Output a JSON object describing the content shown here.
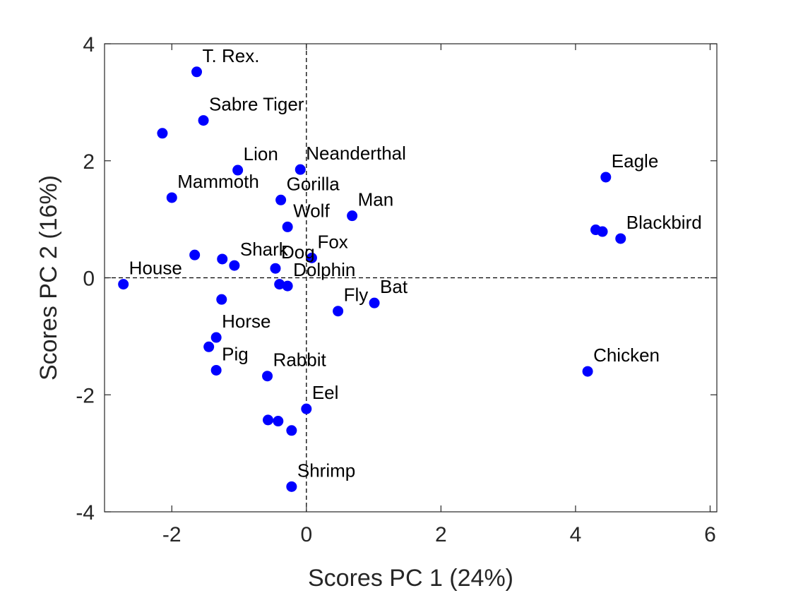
{
  "chart_data": {
    "type": "scatter",
    "xlabel": "Scores PC 1 (24%)",
    "ylabel": "Scores PC 2 (16%)",
    "xlim": [
      -3,
      6.1
    ],
    "ylim": [
      -4,
      4
    ],
    "xticks": [
      -2,
      0,
      2,
      4,
      6
    ],
    "yticks": [
      -4,
      -2,
      0,
      2,
      4
    ],
    "xtick_labels": [
      "-2",
      "0",
      "2",
      "4",
      "6"
    ],
    "ytick_labels": [
      "-4",
      "-2",
      "0",
      "2",
      "4"
    ],
    "reference_lines": {
      "x": 0,
      "y": 0,
      "style": "dashed"
    },
    "grid": false,
    "marker_color": "#0000ff",
    "points": [
      {
        "x": -1.63,
        "y": 3.52,
        "label": "T. Rex."
      },
      {
        "x": -1.53,
        "y": 2.69,
        "label": "Sabre Tiger"
      },
      {
        "x": -2.14,
        "y": 2.47,
        "label": ""
      },
      {
        "x": -1.02,
        "y": 1.84,
        "label": "Lion"
      },
      {
        "x": -0.09,
        "y": 1.85,
        "label": "Neanderthal"
      },
      {
        "x": -2.0,
        "y": 1.37,
        "label": "Mammoth"
      },
      {
        "x": -0.38,
        "y": 1.33,
        "label": "Gorilla"
      },
      {
        "x": 0.68,
        "y": 1.06,
        "label": "Man"
      },
      {
        "x": -0.28,
        "y": 0.87,
        "label": "Wolf"
      },
      {
        "x": 4.45,
        "y": 1.72,
        "label": "Eagle"
      },
      {
        "x": 4.3,
        "y": 0.82,
        "label": ""
      },
      {
        "x": 4.4,
        "y": 0.79,
        "label": ""
      },
      {
        "x": 4.67,
        "y": 0.67,
        "label": "Blackbird"
      },
      {
        "x": -1.66,
        "y": 0.39,
        "label": ""
      },
      {
        "x": -1.25,
        "y": 0.32,
        "label": ""
      },
      {
        "x": -1.07,
        "y": 0.21,
        "label": "Shark"
      },
      {
        "x": 0.08,
        "y": 0.34,
        "label": "Fox"
      },
      {
        "x": -0.46,
        "y": 0.16,
        "label": "Dog"
      },
      {
        "x": -2.72,
        "y": -0.11,
        "label": "House"
      },
      {
        "x": -0.4,
        "y": -0.11,
        "label": ""
      },
      {
        "x": -0.28,
        "y": -0.14,
        "label": "Dolphin"
      },
      {
        "x": -1.26,
        "y": -0.37,
        "label": ""
      },
      {
        "x": 0.47,
        "y": -0.57,
        "label": "Fly"
      },
      {
        "x": 1.01,
        "y": -0.43,
        "label": "Bat"
      },
      {
        "x": -1.34,
        "y": -1.02,
        "label": "Horse"
      },
      {
        "x": -1.45,
        "y": -1.18,
        "label": ""
      },
      {
        "x": -1.34,
        "y": -1.58,
        "label": "Pig"
      },
      {
        "x": -0.58,
        "y": -1.68,
        "label": "Rabbit"
      },
      {
        "x": 4.18,
        "y": -1.6,
        "label": "Chicken"
      },
      {
        "x": 0.0,
        "y": -2.24,
        "label": "Eel"
      },
      {
        "x": -0.57,
        "y": -2.43,
        "label": ""
      },
      {
        "x": -0.42,
        "y": -2.45,
        "label": ""
      },
      {
        "x": -0.22,
        "y": -2.61,
        "label": ""
      },
      {
        "x": -0.22,
        "y": -3.57,
        "label": "Shrimp"
      }
    ]
  }
}
